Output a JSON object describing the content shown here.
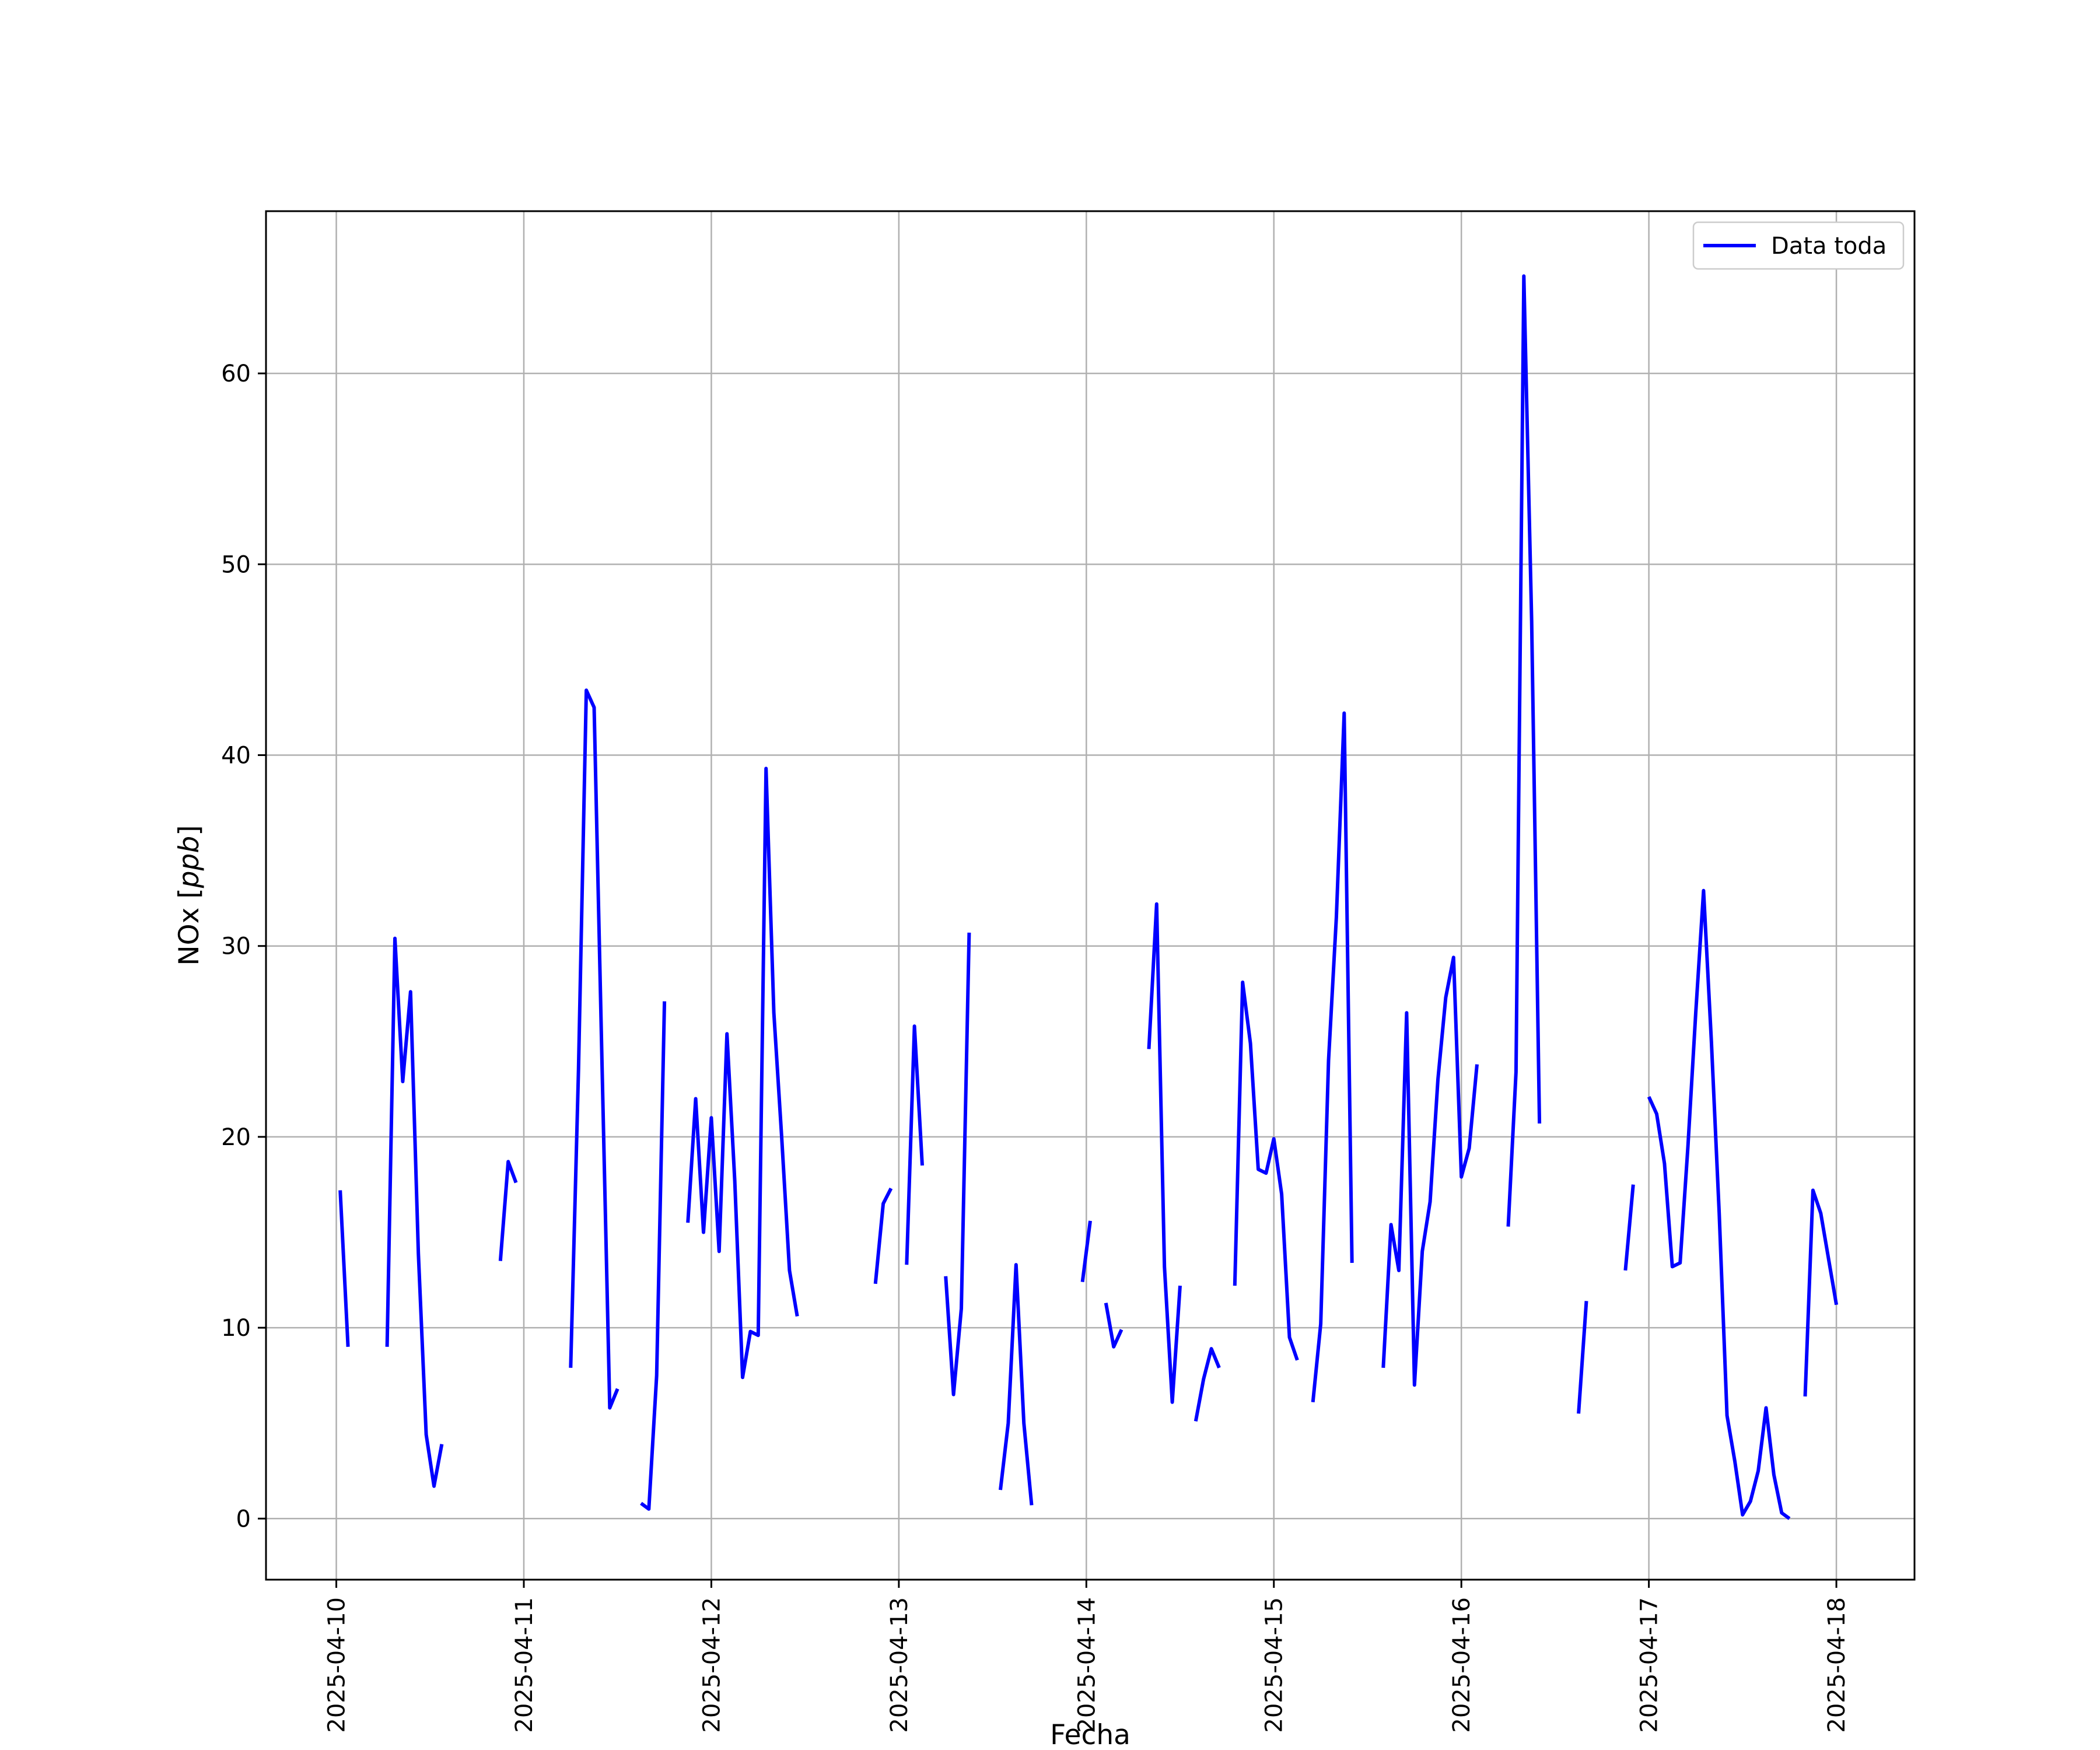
{
  "chart_data": {
    "type": "line",
    "xlabel": "Fecha",
    "ylabel": "NOx [",
    "ylabel_unit": "ppb",
    "ylabel_close": "]",
    "x_ticks": [
      "2025-04-10",
      "2025-04-11",
      "2025-04-12",
      "2025-04-13",
      "2025-04-14",
      "2025-04-15",
      "2025-04-16",
      "2025-04-17",
      "2025-04-18"
    ],
    "y_ticks": [
      "0",
      "10",
      "20",
      "30",
      "40",
      "50",
      "60"
    ],
    "xlim": [
      "2025-04-09T15:00",
      "2025-04-18T10:00"
    ],
    "ylim": [
      -3.2,
      68.5
    ],
    "grid": true,
    "legend": "top-right",
    "colors": {
      "series": "#0000ff",
      "grid": "#b0b0b0"
    },
    "series": [
      {
        "name": "Data toda",
        "segments": [
          [
            [
              "2025-04-10T00:30",
              17.2
            ],
            [
              "2025-04-10T01:30",
              9.0
            ]
          ],
          [
            [
              "2025-04-10T06:30",
              9.0
            ],
            [
              "2025-04-10T07:30",
              30.4
            ],
            [
              "2025-04-10T08:30",
              22.9
            ],
            [
              "2025-04-10T09:30",
              27.6
            ],
            [
              "2025-04-10T10:30",
              13.9
            ],
            [
              "2025-04-10T11:30",
              4.4
            ],
            [
              "2025-04-10T12:30",
              1.7
            ],
            [
              "2025-04-10T13:30",
              3.9
            ]
          ],
          [
            [
              "2025-04-10T21:00",
              13.5
            ],
            [
              "2025-04-10T22:00",
              18.7
            ],
            [
              "2025-04-10T23:00",
              17.6
            ]
          ],
          [
            [
              "2025-04-11T06:00",
              7.9
            ],
            [
              "2025-04-11T07:00",
              23.5
            ],
            [
              "2025-04-11T08:00",
              43.4
            ],
            [
              "2025-04-11T09:00",
              42.5
            ],
            [
              "2025-04-11T10:00",
              24.0
            ],
            [
              "2025-04-11T11:00",
              5.8
            ],
            [
              "2025-04-11T12:00",
              6.8
            ]
          ],
          [
            [
              "2025-04-11T15:00",
              0.8
            ],
            [
              "2025-04-11T16:00",
              0.5
            ],
            [
              "2025-04-11T17:00",
              7.5
            ],
            [
              "2025-04-11T18:00",
              27.1
            ]
          ],
          [
            [
              "2025-04-11T21:00",
              15.5
            ],
            [
              "2025-04-11T22:00",
              22.0
            ],
            [
              "2025-04-11T23:00",
              15.0
            ],
            [
              "2025-04-12T00:00",
              21.0
            ],
            [
              "2025-04-12T01:00",
              14.0
            ],
            [
              "2025-04-12T02:00",
              25.4
            ],
            [
              "2025-04-12T03:00",
              17.7
            ],
            [
              "2025-04-12T04:00",
              7.4
            ],
            [
              "2025-04-12T05:00",
              9.8
            ],
            [
              "2025-04-12T06:00",
              9.6
            ],
            [
              "2025-04-12T07:00",
              39.3
            ],
            [
              "2025-04-12T08:00",
              26.5
            ],
            [
              "2025-04-12T09:00",
              20.0
            ],
            [
              "2025-04-12T10:00",
              13.0
            ],
            [
              "2025-04-12T11:00",
              10.6
            ]
          ],
          [
            [
              "2025-04-12T21:00",
              12.3
            ],
            [
              "2025-04-12T22:00",
              16.5
            ],
            [
              "2025-04-12T23:00",
              17.3
            ]
          ],
          [
            [
              "2025-04-13T01:00",
              13.3
            ],
            [
              "2025-04-13T02:00",
              25.8
            ],
            [
              "2025-04-13T03:00",
              18.5
            ]
          ],
          [
            [
              "2025-04-13T06:00",
              12.7
            ],
            [
              "2025-04-13T07:00",
              6.5
            ],
            [
              "2025-04-13T08:00",
              11.0
            ],
            [
              "2025-04-13T09:00",
              30.7
            ]
          ],
          [
            [
              "2025-04-13T13:00",
              1.5
            ],
            [
              "2025-04-13T14:00",
              5.0
            ],
            [
              "2025-04-13T15:00",
              13.3
            ],
            [
              "2025-04-13T16:00",
              5.0
            ],
            [
              "2025-04-13T17:00",
              0.7
            ]
          ],
          [
            [
              "2025-04-13T23:30",
              12.4
            ],
            [
              "2025-04-14T00:30",
              15.6
            ]
          ],
          [
            [
              "2025-04-14T02:30",
              11.3
            ],
            [
              "2025-04-14T03:30",
              9.0
            ],
            [
              "2025-04-14T04:30",
              9.9
            ]
          ],
          [
            [
              "2025-04-14T08:00",
              24.6
            ],
            [
              "2025-04-14T09:00",
              32.2
            ],
            [
              "2025-04-14T10:00",
              13.2
            ],
            [
              "2025-04-14T11:00",
              6.1
            ],
            [
              "2025-04-14T12:00",
              12.2
            ]
          ],
          [
            [
              "2025-04-14T14:00",
              5.1
            ],
            [
              "2025-04-14T15:00",
              7.3
            ],
            [
              "2025-04-14T16:00",
              8.9
            ],
            [
              "2025-04-14T17:00",
              7.9
            ]
          ],
          [
            [
              "2025-04-14T19:00",
              12.2
            ],
            [
              "2025-04-14T20:00",
              28.1
            ],
            [
              "2025-04-14T21:00",
              24.9
            ],
            [
              "2025-04-14T22:00",
              18.3
            ],
            [
              "2025-04-14T23:00",
              18.1
            ],
            [
              "2025-04-15T00:00",
              19.9
            ],
            [
              "2025-04-15T01:00",
              17.0
            ],
            [
              "2025-04-15T02:00",
              9.5
            ],
            [
              "2025-04-15T03:00",
              8.3
            ]
          ],
          [
            [
              "2025-04-15T05:00",
              6.1
            ],
            [
              "2025-04-15T06:00",
              10.2
            ],
            [
              "2025-04-15T07:00",
              24.0
            ],
            [
              "2025-04-15T08:00",
              31.5
            ],
            [
              "2025-04-15T09:00",
              42.2
            ],
            [
              "2025-04-15T10:00",
              13.4
            ]
          ],
          [
            [
              "2025-04-15T14:00",
              7.9
            ],
            [
              "2025-04-15T15:00",
              15.4
            ],
            [
              "2025-04-15T16:00",
              13.0
            ],
            [
              "2025-04-15T17:00",
              26.5
            ],
            [
              "2025-04-15T18:00",
              7.0
            ],
            [
              "2025-04-15T19:00",
              14.0
            ],
            [
              "2025-04-15T20:00",
              16.6
            ],
            [
              "2025-04-15T21:00",
              23.0
            ],
            [
              "2025-04-15T22:00",
              27.3
            ],
            [
              "2025-04-15T23:00",
              29.4
            ],
            [
              "2025-04-16T00:00",
              17.9
            ],
            [
              "2025-04-16T01:00",
              19.4
            ],
            [
              "2025-04-16T02:00",
              23.8
            ]
          ],
          [
            [
              "2025-04-16T06:00",
              15.3
            ],
            [
              "2025-04-16T07:00",
              23.4
            ],
            [
              "2025-04-16T08:00",
              65.1
            ],
            [
              "2025-04-16T09:00",
              47.0
            ],
            [
              "2025-04-16T10:00",
              20.7
            ]
          ],
          [
            [
              "2025-04-16T15:00",
              5.5
            ],
            [
              "2025-04-16T16:00",
              11.4
            ]
          ],
          [
            [
              "2025-04-16T21:00",
              13.0
            ],
            [
              "2025-04-16T22:00",
              17.5
            ]
          ],
          [
            [
              "2025-04-17T00:00",
              22.1
            ],
            [
              "2025-04-17T01:00",
              21.2
            ],
            [
              "2025-04-17T02:00",
              18.6
            ],
            [
              "2025-04-17T03:00",
              13.2
            ],
            [
              "2025-04-17T04:00",
              13.4
            ],
            [
              "2025-04-17T05:00",
              19.5
            ],
            [
              "2025-04-17T06:00",
              26.5
            ],
            [
              "2025-04-17T07:00",
              32.9
            ],
            [
              "2025-04-17T08:00",
              25.0
            ],
            [
              "2025-04-17T09:00",
              16.0
            ],
            [
              "2025-04-17T10:00",
              5.4
            ],
            [
              "2025-04-17T11:00",
              3.0
            ],
            [
              "2025-04-17T12:00",
              0.2
            ],
            [
              "2025-04-17T13:00",
              0.9
            ],
            [
              "2025-04-17T14:00",
              2.5
            ],
            [
              "2025-04-17T15:00",
              5.8
            ],
            [
              "2025-04-17T16:00",
              2.3
            ],
            [
              "2025-04-17T17:00",
              0.3
            ],
            [
              "2025-04-17T18:00",
              0.0
            ]
          ],
          [
            [
              "2025-04-17T20:00",
              6.4
            ],
            [
              "2025-04-17T21:00",
              17.2
            ],
            [
              "2025-04-17T22:00",
              16.0
            ],
            [
              "2025-04-17T23:00",
              13.6
            ],
            [
              "2025-04-18T00:00",
              11.2
            ]
          ]
        ]
      }
    ]
  }
}
